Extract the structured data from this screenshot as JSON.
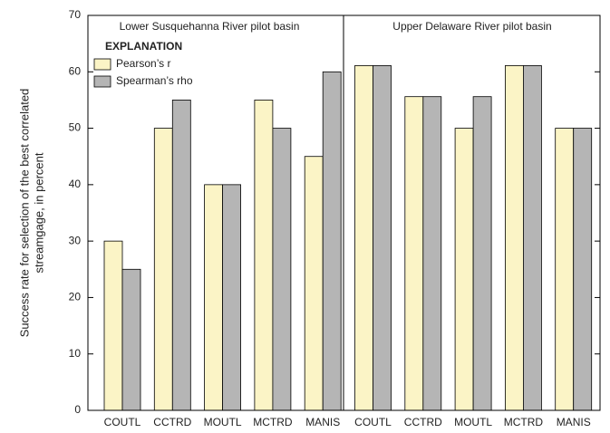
{
  "chart_data": {
    "type": "bar",
    "ylabel": [
      "Success rate for selection of the best correlated",
      "streamgage, in percent"
    ],
    "annotations": [
      "Lower Susquehanna River pilot basin",
      "Upper Delaware River pilot basin"
    ],
    "legend_title": "EXPLANATION",
    "categories": [
      "COUTL",
      "CCTRD",
      "MOUTL",
      "MCTRD",
      "MANIS",
      "COUTL",
      "CCTRD",
      "MOUTL",
      "MCTRD",
      "MANIS"
    ],
    "series": [
      {
        "name": "Pearson’s r",
        "color": "#fbf4c6",
        "values": [
          30,
          50,
          40,
          55,
          45,
          61.1,
          55.6,
          50,
          61.1,
          50
        ]
      },
      {
        "name": "Spearman’s rho",
        "color": "#b5b5b5",
        "values": [
          25,
          55,
          40,
          50,
          60,
          61.1,
          55.6,
          55.6,
          61.1,
          50
        ]
      }
    ],
    "ylim": [
      0,
      70
    ],
    "yticks": [
      0,
      10,
      20,
      30,
      40,
      50,
      60,
      70
    ],
    "legend": "upper left"
  }
}
